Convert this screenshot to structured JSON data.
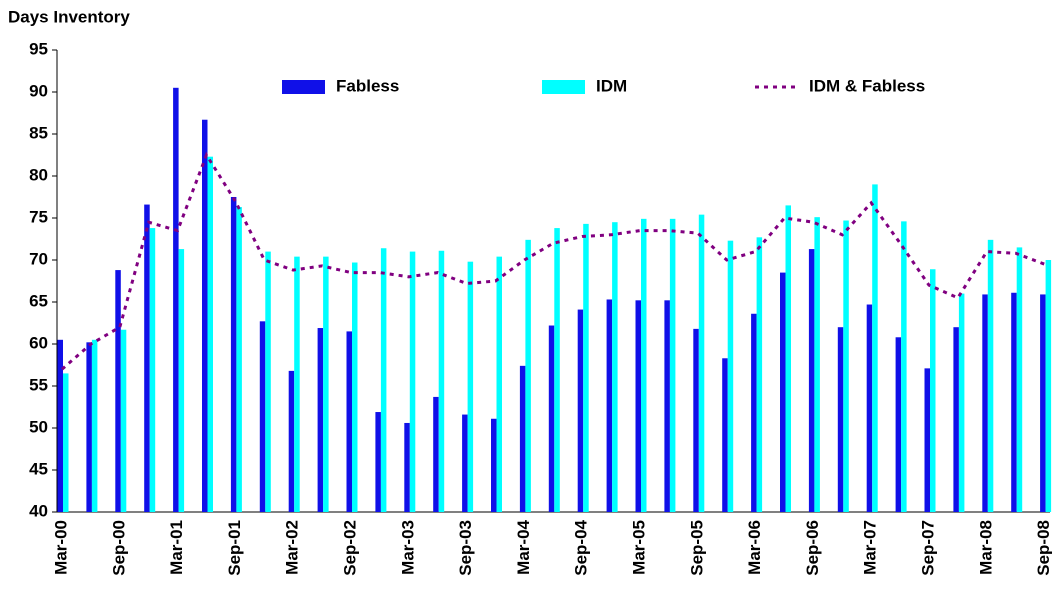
{
  "chart_data": {
    "type": "bar_line",
    "y_label": "Days Inventory",
    "categories": [
      "Mar-00",
      null,
      "Sep-00",
      null,
      "Mar-01",
      null,
      "Sep-01",
      null,
      "Mar-02",
      null,
      "Sep-02",
      null,
      "Mar-03",
      null,
      "Sep-03",
      null,
      "Mar-04",
      null,
      "Sep-04",
      null,
      "Mar-05",
      null,
      "Sep-05",
      null,
      "Mar-06",
      null,
      "Sep-06",
      null,
      "Mar-07",
      null,
      "Sep-07",
      null,
      "Mar-08",
      null,
      "Sep-08"
    ],
    "series": [
      {
        "name": "Fabless",
        "kind": "bar",
        "color": "#1010e8",
        "values": [
          60.5,
          60.2,
          68.8,
          76.6,
          90.5,
          86.7,
          77.5,
          62.7,
          56.8,
          61.9,
          61.5,
          51.9,
          50.6,
          53.7,
          51.6,
          51.1,
          57.4,
          62.2,
          64.1,
          65.3,
          65.2,
          65.2,
          61.8,
          58.3,
          63.6,
          68.5,
          71.3,
          62.0,
          64.7,
          60.8,
          57.1,
          62.0,
          65.9,
          66.1,
          65.9
        ]
      },
      {
        "name": "IDM",
        "kind": "bar",
        "color": "#00ffff",
        "values": [
          56.5,
          60.5,
          61.7,
          73.8,
          71.3,
          82.3,
          76.3,
          71.0,
          70.4,
          70.4,
          69.7,
          71.4,
          71.0,
          71.1,
          69.8,
          70.4,
          72.4,
          73.8,
          74.3,
          74.5,
          74.9,
          74.9,
          75.4,
          72.3,
          72.7,
          76.5,
          75.1,
          74.7,
          79.0,
          74.6,
          68.9,
          66.0,
          72.4,
          71.5,
          70.0
        ]
      },
      {
        "name": "IDM & Fabless",
        "kind": "line",
        "dashed": true,
        "color": "#800080",
        "values": [
          57.0,
          60.0,
          62.0,
          74.5,
          73.5,
          82.5,
          77.0,
          70.0,
          68.8,
          69.3,
          68.5,
          68.5,
          68.0,
          68.5,
          67.2,
          67.5,
          70.0,
          72.0,
          72.8,
          73.0,
          73.5,
          73.5,
          73.2,
          70.0,
          71.0,
          75.0,
          74.5,
          73.0,
          76.8,
          72.0,
          67.0,
          65.5,
          71.0,
          70.8,
          69.5
        ]
      }
    ],
    "ylim": [
      40,
      95
    ],
    "yticks": [
      40,
      45,
      50,
      55,
      60,
      65,
      70,
      75,
      80,
      85,
      90,
      95
    ],
    "legend": "top"
  }
}
